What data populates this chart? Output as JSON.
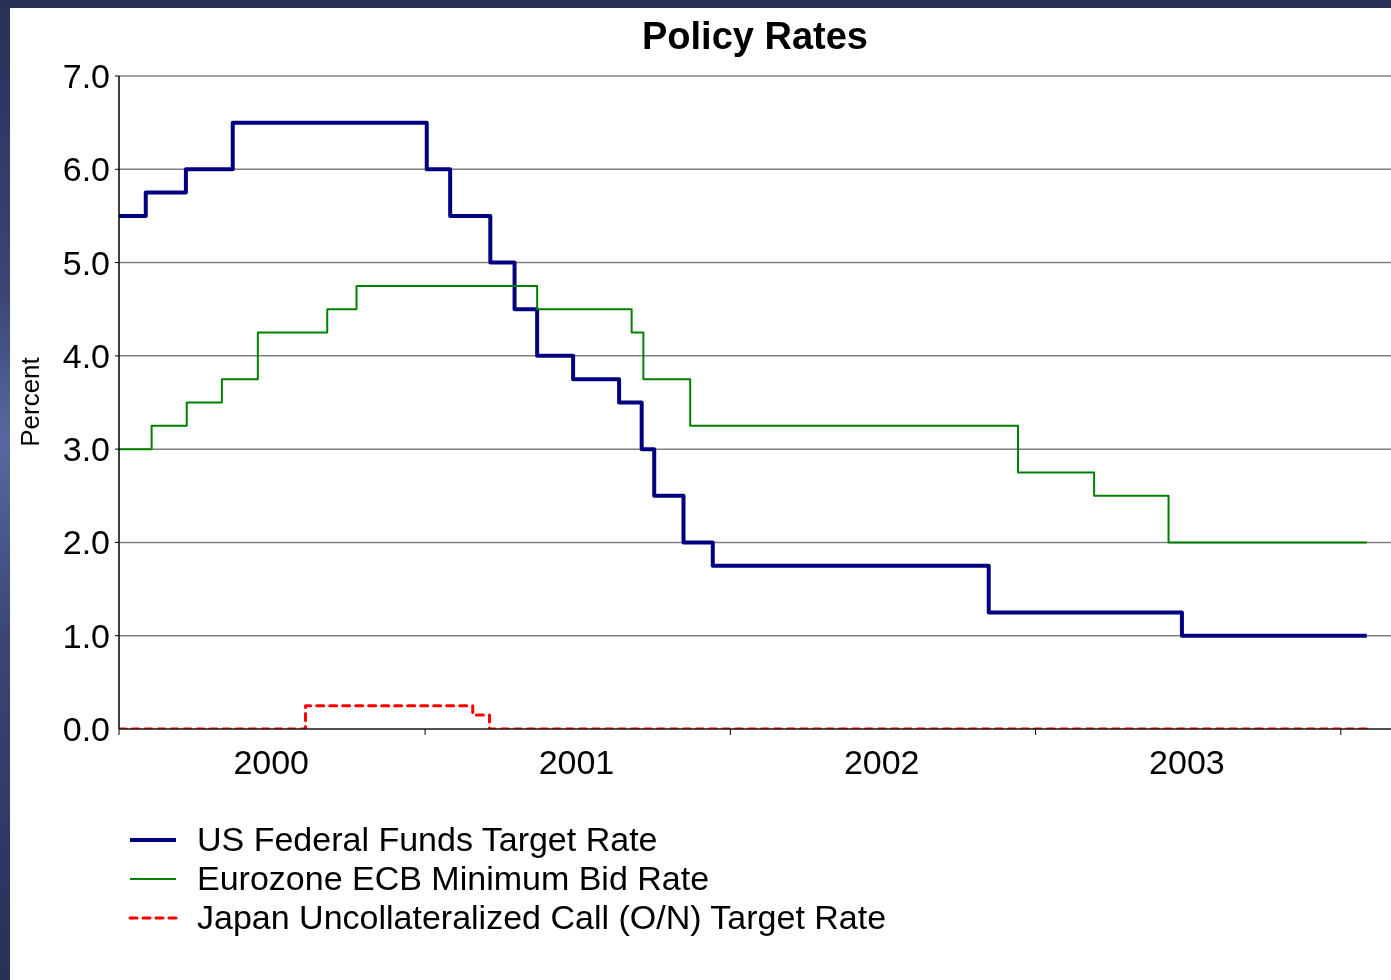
{
  "chart_data": {
    "type": "step",
    "title": "Policy Rates",
    "ylabel": "Percent",
    "xlim": [
      "2000-01-01",
      "2004-03-01"
    ],
    "xticks": [
      {
        "value": "2000-01-01",
        "label": null
      },
      {
        "value": "2000-07-01",
        "label": "2000"
      },
      {
        "value": "2001-01-01",
        "label": null
      },
      {
        "value": "2001-07-01",
        "label": "2001"
      },
      {
        "value": "2002-01-01",
        "label": null
      },
      {
        "value": "2002-07-01",
        "label": "2002"
      },
      {
        "value": "2003-01-01",
        "label": null
      },
      {
        "value": "2003-07-01",
        "label": "2003"
      },
      {
        "value": "2004-01-01",
        "label": null
      }
    ],
    "ylim": [
      0,
      7
    ],
    "yticks": [
      {
        "value": 0,
        "label": "0.0"
      },
      {
        "value": 1,
        "label": "1.0"
      },
      {
        "value": 2,
        "label": "2.0"
      },
      {
        "value": 3,
        "label": "3.0"
      },
      {
        "value": 4,
        "label": "4.0"
      },
      {
        "value": 5,
        "label": "5.0"
      },
      {
        "value": 6,
        "label": "6.0"
      },
      {
        "value": 7,
        "label": "7.0"
      }
    ],
    "grid": "y",
    "legend": "bottom left",
    "marker": "none",
    "series": [
      {
        "name": "US Federal Funds Target Rate",
        "color": "#000080",
        "line_style": "solid",
        "x": [
          "2000-01-01",
          "2000-02-02",
          "2000-03-21",
          "2000-05-16",
          "2001-01-03",
          "2001-01-31",
          "2001-03-20",
          "2001-04-18",
          "2001-05-15",
          "2001-06-27",
          "2001-08-21",
          "2001-09-17",
          "2001-10-02",
          "2001-11-06",
          "2001-12-11",
          "2002-11-06",
          "2003-06-25",
          "2004-02-01"
        ],
        "values": [
          5.5,
          5.75,
          6.0,
          6.5,
          6.0,
          5.5,
          5.0,
          4.5,
          4.0,
          3.75,
          3.5,
          3.0,
          2.5,
          2.0,
          1.75,
          1.25,
          1.0,
          1.0
        ]
      },
      {
        "name": "Eurozone ECB Minimum Bid Rate",
        "color": "#008000",
        "line_style": "solid",
        "x": [
          "2000-01-01",
          "2000-02-09",
          "2000-03-22",
          "2000-05-03",
          "2000-06-15",
          "2000-09-06",
          "2000-10-11",
          "2001-05-15",
          "2001-09-05",
          "2001-09-19",
          "2001-11-14",
          "2002-12-11",
          "2003-03-12",
          "2003-06-09",
          "2004-02-01"
        ],
        "values": [
          3.0,
          3.25,
          3.5,
          3.75,
          4.25,
          4.5,
          4.75,
          4.5,
          4.25,
          3.75,
          3.25,
          2.75,
          2.5,
          2.0,
          2.0
        ]
      },
      {
        "name": "Japan Uncollateralized Call (O/N) Target Rate",
        "color": "#ff0000",
        "line_style": "dashed",
        "x": [
          "2000-01-01",
          "2000-08-11",
          "2001-02-27",
          "2001-03-19",
          "2004-02-01"
        ],
        "values": [
          0,
          0.25,
          0.15,
          0,
          0
        ]
      }
    ]
  }
}
